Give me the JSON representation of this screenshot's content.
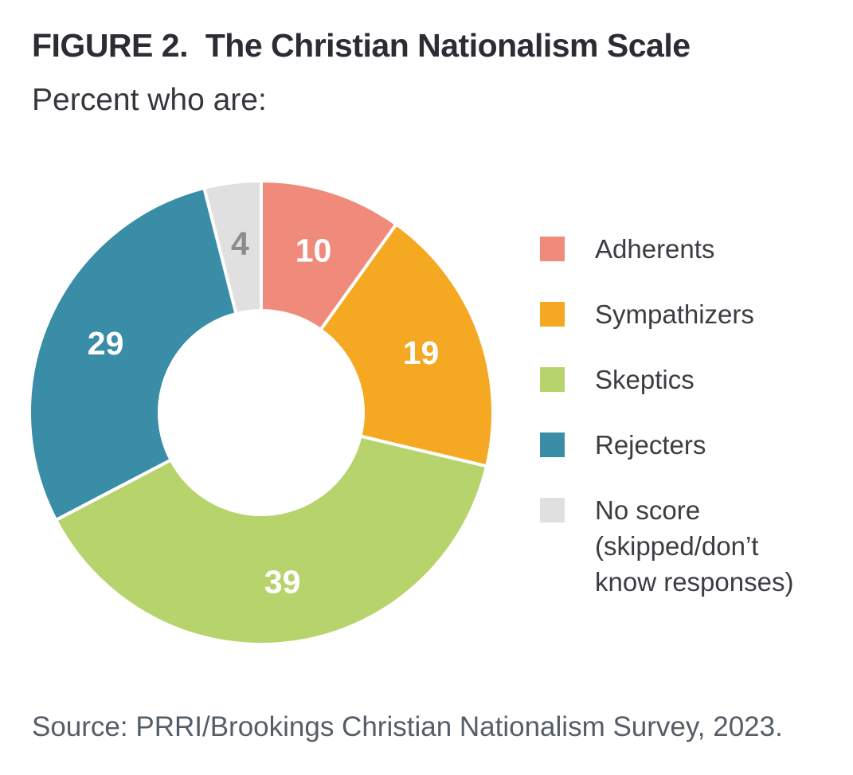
{
  "figure": {
    "title": "FIGURE 2.  The Christian Nationalism Scale",
    "subtitle": "Percent who are:",
    "source": "Source: PRRI/Brookings Christian Nationalism Survey, 2023."
  },
  "chart_data": {
    "type": "pie",
    "subtype": "donut",
    "title": "FIGURE 2. The Christian Nationalism Scale",
    "subtitle": "Percent who are:",
    "unit": "percent",
    "categories": [
      "Adherents",
      "Sympathizers",
      "Skeptics",
      "Rejecters",
      "No score (skipped/don’t know responses)"
    ],
    "values": [
      10,
      19,
      39,
      29,
      4
    ],
    "colors": [
      "#F08B7C",
      "#F5A822",
      "#B7D36C",
      "#3A8DA6",
      "#E0E0E0"
    ],
    "label_colors": [
      "#FFFFFF",
      "#FFFFFF",
      "#FFFFFF",
      "#FFFFFF",
      "#8C8C8C"
    ],
    "start_angle_deg": 0,
    "direction": "clockwise",
    "inner_radius_ratio": 0.44,
    "slice_gap_color": "#FFFFFF",
    "legend_position": "right",
    "source": "Source: PRRI/Brookings Christian Nationalism Survey, 2023."
  },
  "legend": {
    "items": [
      {
        "label": "Adherents",
        "color": "#F08B7C"
      },
      {
        "label": "Sympathizers",
        "color": "#F5A822"
      },
      {
        "label": "Skeptics",
        "color": "#B7D36C"
      },
      {
        "label": "Rejecters",
        "color": "#3A8DA6"
      },
      {
        "label": "No score (skipped/don’t know responses)",
        "color": "#E0E0E0"
      }
    ]
  }
}
